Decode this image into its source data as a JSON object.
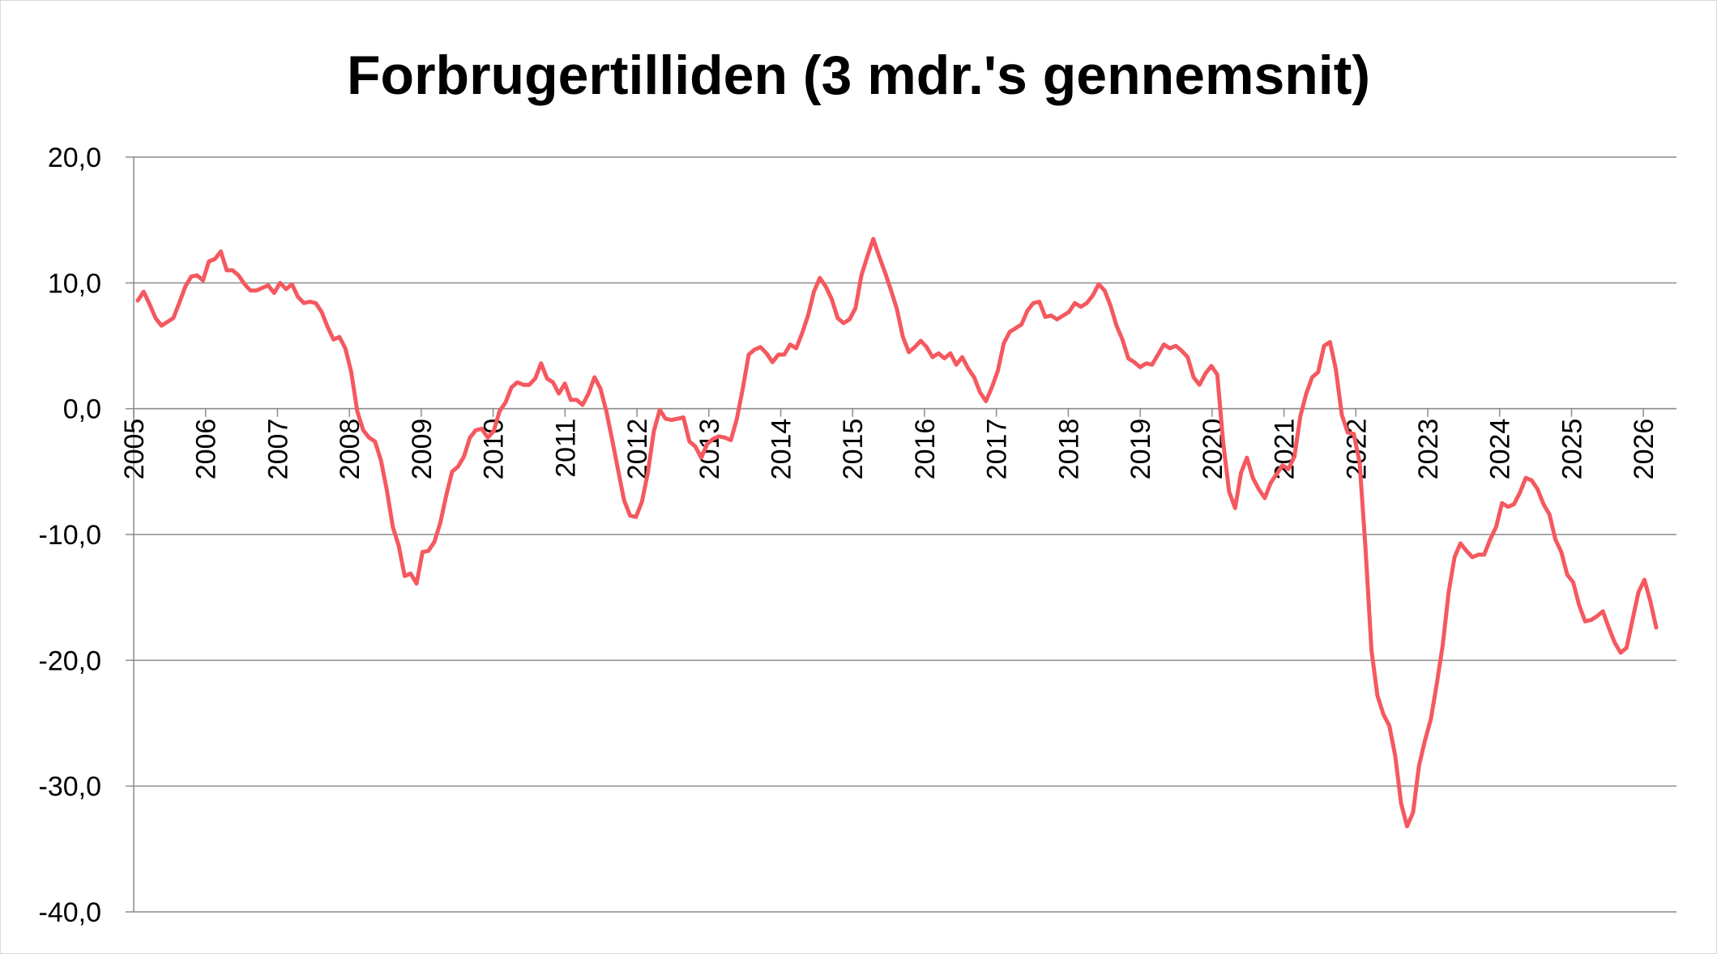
{
  "chart_data": {
    "type": "line",
    "title": "Forbrugertilliden (3 mdr.'s gennemsnit)",
    "xlabel": "",
    "ylabel": "",
    "ylim": [
      -40,
      20
    ],
    "yticks": [
      "20,0",
      "10,0",
      "0,0",
      "-10,0",
      "-20,0",
      "-30,0",
      "-40,0"
    ],
    "ytick_values": [
      20,
      10,
      0,
      -10,
      -20,
      -30,
      -40
    ],
    "xtick_labels": [
      "2005",
      "2006",
      "2007",
      "2008",
      "2009",
      "2010",
      "2011",
      "2012",
      "2013",
      "2014",
      "2015",
      "2016",
      "2017",
      "2018",
      "2019",
      "2020",
      "2021",
      "2022",
      "2023",
      "2024",
      "2025",
      "2026"
    ],
    "x_start_year": 2005,
    "grid": true,
    "legend": "none",
    "line_color": "#f4595f",
    "series": [
      {
        "values": [
          8.6,
          9.3,
          8.3,
          7.2,
          6.6,
          6.9,
          7.2,
          8.4,
          9.7,
          10.5,
          10.6,
          10.2,
          11.7,
          11.9,
          12.5,
          11.0,
          11.0,
          10.6,
          9.9,
          9.4,
          9.4,
          9.6,
          9.8,
          9.2,
          10.0,
          9.5,
          9.9,
          8.9,
          8.4,
          8.5,
          8.4,
          7.7,
          6.5,
          5.5,
          5.7,
          4.8,
          2.9,
          -0.2,
          -1.7,
          -2.3,
          -2.6,
          -4.1,
          -6.5,
          -9.4,
          -10.9,
          -13.3,
          -13.1,
          -13.9,
          -11.4,
          -11.3,
          -10.6,
          -9.1,
          -6.9,
          -5.0,
          -4.6,
          -3.8,
          -2.3,
          -1.7,
          -1.6,
          -2.3,
          -1.8,
          -0.2,
          0.5,
          1.7,
          2.1,
          1.9,
          1.9,
          2.4,
          3.6,
          2.4,
          2.1,
          1.2,
          2.0,
          0.7,
          0.7,
          0.3,
          1.2,
          2.5,
          1.6,
          -0.2,
          -2.5,
          -4.9,
          -7.3,
          -8.5,
          -8.6,
          -7.4,
          -5.1,
          -1.8,
          -0.1,
          -0.8,
          -0.9,
          -0.8,
          -0.7,
          -2.6,
          -3.0,
          -3.9,
          -2.8,
          -2.4,
          -2.2,
          -2.3,
          -2.5,
          -0.8,
          1.6,
          4.3,
          4.7,
          4.9,
          4.4,
          3.7,
          4.3,
          4.3,
          5.1,
          4.8,
          6.0,
          7.4,
          9.3,
          10.4,
          9.7,
          8.7,
          7.2,
          6.8,
          7.1,
          8.0,
          10.6,
          12.1,
          13.5,
          12.1,
          10.8,
          9.4,
          7.9,
          5.7,
          4.5,
          4.9,
          5.4,
          4.9,
          4.1,
          4.4,
          4.0,
          4.4,
          3.5,
          4.1,
          3.2,
          2.5,
          1.3,
          0.6,
          1.7,
          3.0,
          5.2,
          6.1,
          6.4,
          6.7,
          7.8,
          8.4,
          8.5,
          7.3,
          7.4,
          7.1,
          7.4,
          7.7,
          8.4,
          8.1,
          8.4,
          9.0,
          9.9,
          9.4,
          8.2,
          6.6,
          5.5,
          4.0,
          3.7,
          3.3,
          3.6,
          3.5,
          4.3,
          5.1,
          4.8,
          5.0,
          4.6,
          4.1,
          2.5,
          1.9,
          2.8,
          3.4,
          2.7,
          -2.7,
          -6.6,
          -7.9,
          -5.1,
          -3.9,
          -5.5,
          -6.4,
          -7.1,
          -5.9,
          -5.2,
          -4.5,
          -4.8,
          -3.8,
          -0.6,
          1.2,
          2.5,
          2.9,
          5.0,
          5.3,
          3.1,
          -0.5,
          -1.9,
          -2.0,
          -4.3,
          -11.2,
          -19.2,
          -22.8,
          -24.3,
          -25.2,
          -27.6,
          -31.4,
          -33.2,
          -32.1,
          -28.4,
          -26.4,
          -24.7,
          -21.9,
          -18.8,
          -14.6,
          -11.8,
          -10.7,
          -11.3,
          -11.8,
          -11.6,
          -11.6,
          -10.4,
          -9.4,
          -7.5,
          -7.8,
          -7.6,
          -6.7,
          -5.5,
          -5.7,
          -6.4,
          -7.6,
          -8.4,
          -10.4,
          -11.4,
          -13.2,
          -13.8,
          -15.6,
          -16.9,
          -16.8,
          -16.5,
          -16.1,
          -17.4,
          -18.6,
          -19.4,
          -19.0,
          -16.8,
          -14.6,
          -13.6,
          -15.3,
          -17.4
        ]
      }
    ]
  }
}
